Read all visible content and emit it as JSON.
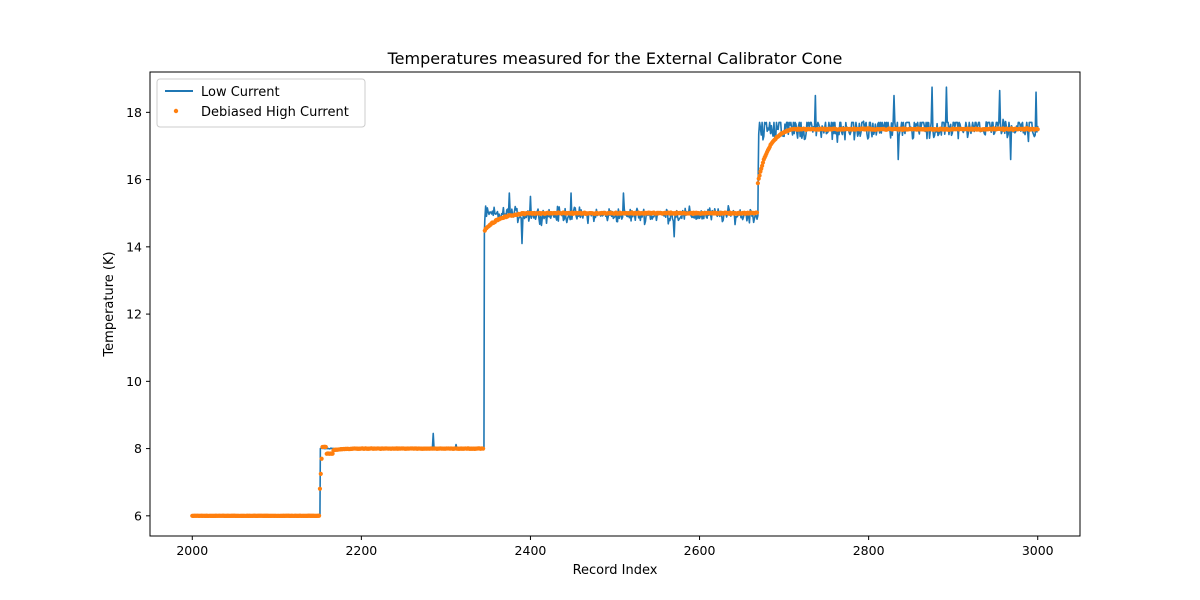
{
  "chart_data": {
    "type": "line",
    "title": "Temperatures measured for the External Calibrator Cone",
    "xlabel": "Record Index",
    "ylabel": "Temperature (K)",
    "xlim": [
      1950,
      3050
    ],
    "ylim": [
      5.4,
      19.2
    ],
    "xticks": [
      2000,
      2200,
      2400,
      2600,
      2800,
      3000
    ],
    "yticks": [
      6,
      8,
      10,
      12,
      14,
      16,
      18
    ],
    "legend": {
      "position": "top-left"
    },
    "series": [
      {
        "name": "Low Current",
        "style": "line",
        "color": "#1f77b4",
        "segments": [
          {
            "x_start": 2000,
            "x_end": 2151,
            "level": 6.0,
            "noise": 0.0,
            "spikes": []
          },
          {
            "x_start": 2152,
            "x_end": 2345,
            "level": 8.0,
            "noise": 0.03,
            "spikes": [
              [
                2285,
                8.45
              ],
              [
                2312,
                8.12
              ]
            ]
          },
          {
            "x_start": 2346,
            "x_end": 2669,
            "level": 14.95,
            "noise": 0.33,
            "spikes": [
              [
                2375,
                15.6
              ],
              [
                2400,
                15.5
              ],
              [
                2448,
                15.6
              ],
              [
                2510,
                15.6
              ],
              [
                2390,
                14.1
              ],
              [
                2570,
                14.3
              ]
            ]
          },
          {
            "x_start": 2670,
            "x_end": 3000,
            "level": 17.45,
            "noise": 0.42,
            "spikes": [
              [
                2737,
                18.5
              ],
              [
                2830,
                18.5
              ],
              [
                2875,
                18.75
              ],
              [
                2892,
                18.75
              ],
              [
                2955,
                18.65
              ],
              [
                2998,
                18.6
              ],
              [
                2835,
                16.6
              ],
              [
                2968,
                16.6
              ],
              [
                3000,
                17.6
              ]
            ]
          }
        ],
        "transitions": [
          {
            "at": 2151,
            "from": 6.0,
            "to": 8.0
          },
          {
            "at": 2345,
            "from": 8.0,
            "to": 14.4
          },
          {
            "at": 2669,
            "from": 15.0,
            "to": 16.4
          }
        ]
      },
      {
        "name": "Debiased High Current",
        "style": "scatter",
        "color": "#ff7f0e",
        "segments": [
          {
            "x_start": 2000,
            "x_end": 2150,
            "level": 6.0
          },
          {
            "x_start": 2151,
            "x_end": 2344,
            "level": 8.0,
            "overshoot": {
              "peak": 8.05,
              "dip": 7.85,
              "settle_at": 2200
            }
          },
          {
            "x_start": 2346,
            "x_end": 2668,
            "level": 15.0,
            "start_value": 14.5,
            "settle_at": 2400
          },
          {
            "x_start": 2669,
            "x_end": 3000,
            "level": 17.5,
            "start_value": 15.9,
            "settle_at": 2710
          }
        ]
      }
    ]
  },
  "colors": {
    "line": "#1f77b4",
    "scatter": "#ff7f0e"
  }
}
